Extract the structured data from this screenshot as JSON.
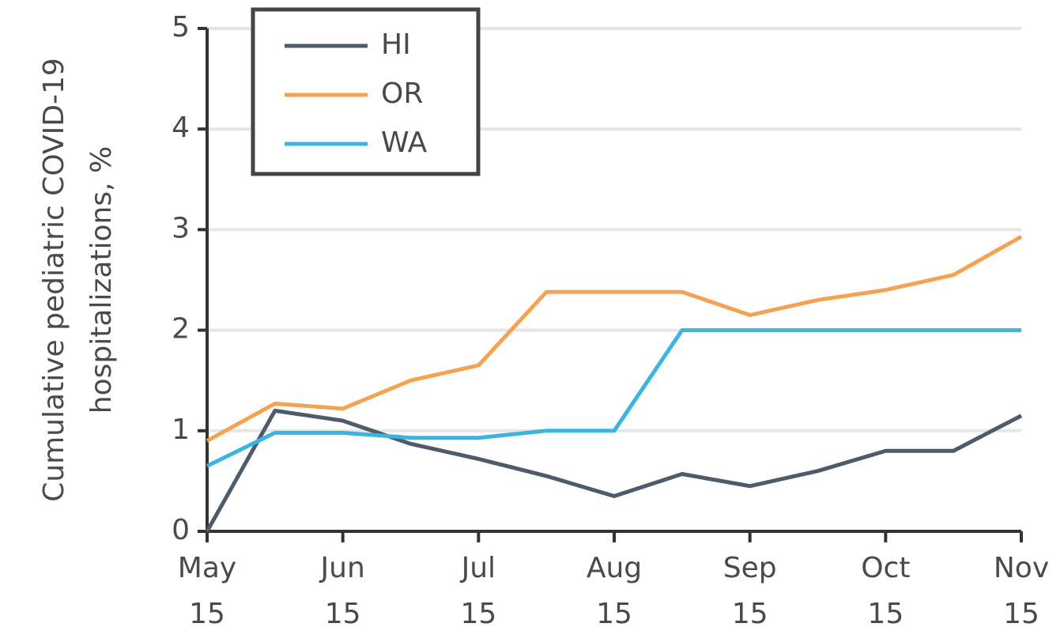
{
  "chart_data": {
    "type": "line",
    "ylabel": [
      "Cumulative pediatric COVID-19",
      "hospitalizations, %"
    ],
    "categories": [
      "May 15",
      null,
      "Jun 15",
      null,
      "Jul 15",
      null,
      "Aug 15",
      null,
      "Sep 15",
      null,
      "Oct 15",
      null,
      "Nov 15"
    ],
    "series": [
      {
        "name": "HI",
        "color": "#4d5b6a",
        "values": [
          0,
          1.2,
          1.1,
          0.87,
          0.72,
          0.55,
          0.35,
          0.57,
          0.45,
          0.6,
          0.8,
          0.8,
          1.15
        ]
      },
      {
        "name": "OR",
        "color": "#f5a352",
        "values": [
          0.9,
          1.27,
          1.22,
          1.5,
          1.65,
          2.38,
          2.38,
          2.38,
          2.15,
          2.3,
          2.4,
          2.55,
          2.93
        ]
      },
      {
        "name": "WA",
        "color": "#3cb4e0",
        "values": [
          0.65,
          0.98,
          0.98,
          0.93,
          0.93,
          1.0,
          1.0,
          2.0,
          2.0,
          2.0,
          2.0,
          2.0,
          2.0
        ]
      }
    ],
    "ylim": [
      0,
      5
    ],
    "yticks": [
      0,
      1,
      2,
      3,
      4,
      5
    ],
    "grid": true,
    "legend": "upper left"
  }
}
